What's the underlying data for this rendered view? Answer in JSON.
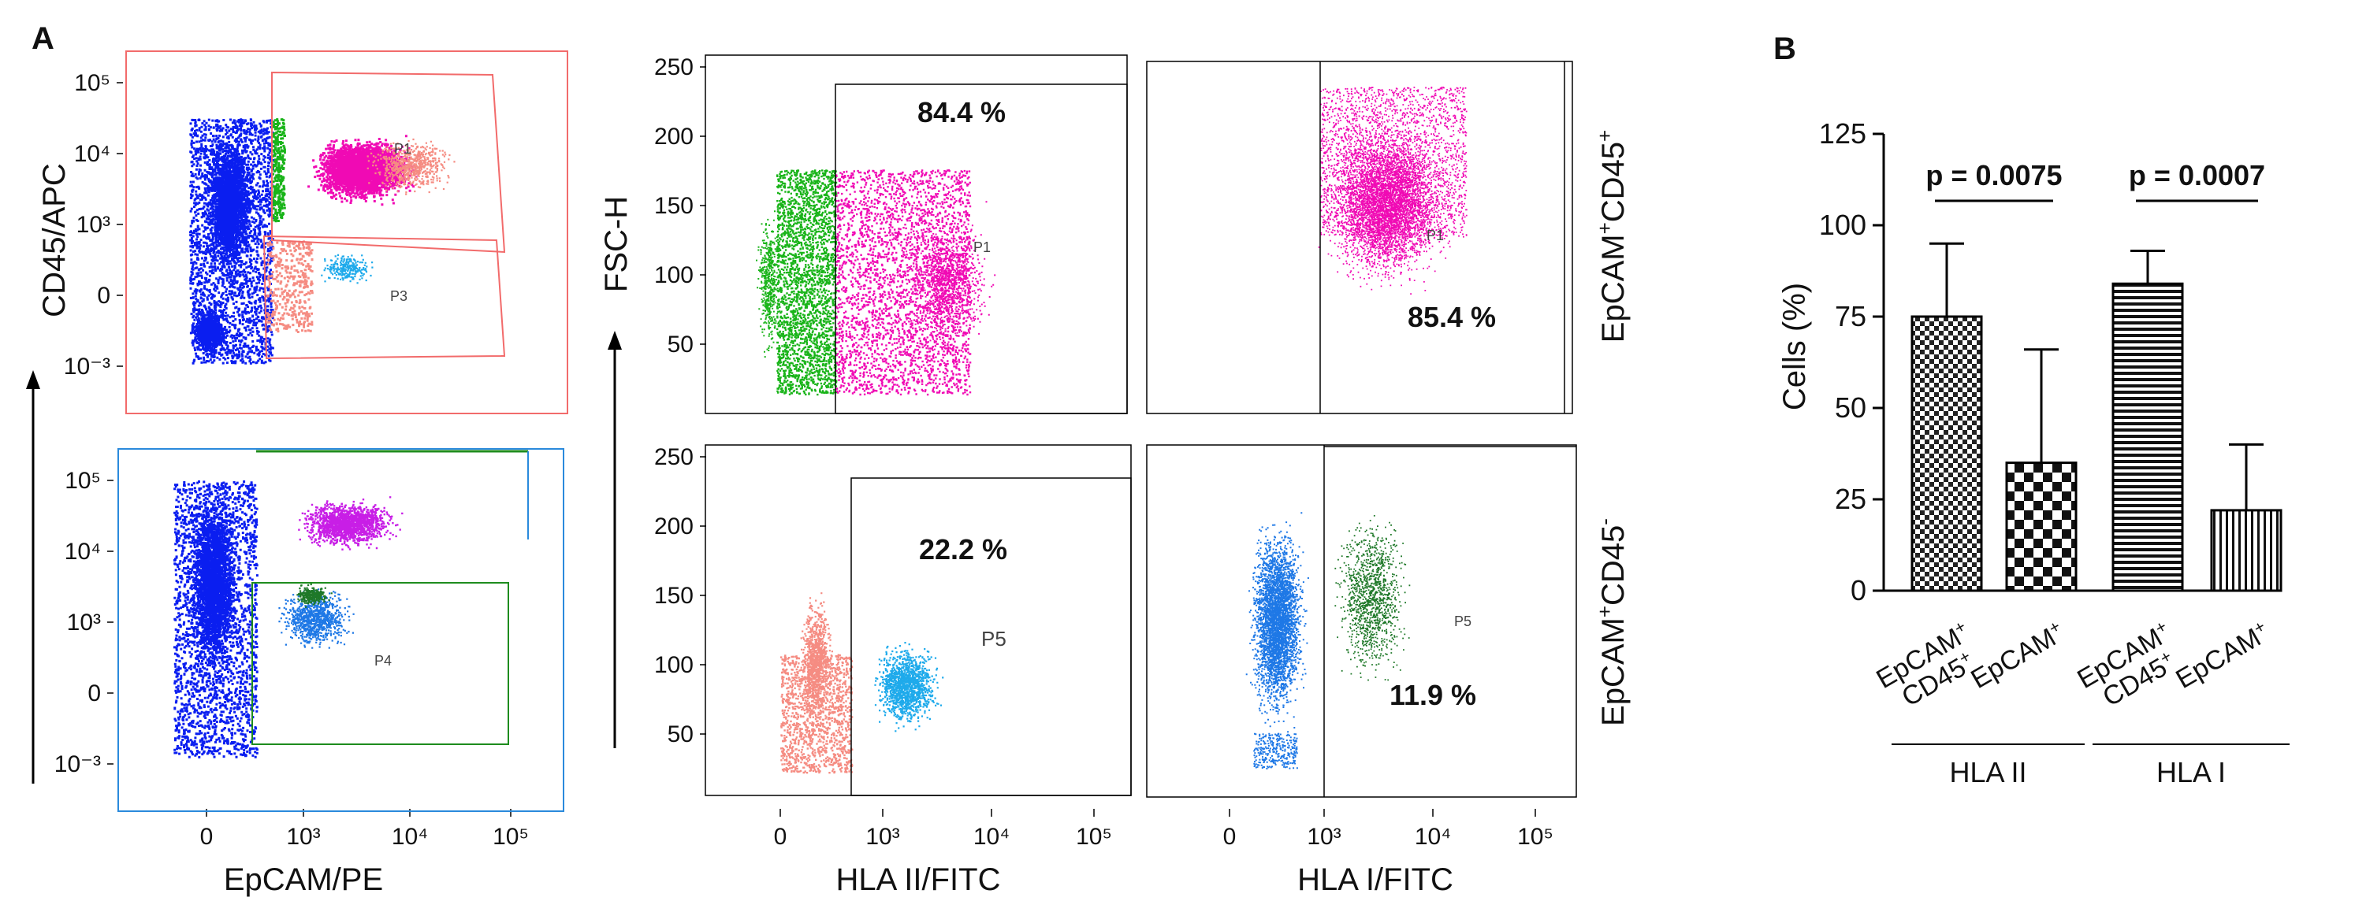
{
  "panel_a": {
    "label": "A",
    "left_ylabel": "CD45/APC",
    "left_xlabel": "EpCAM/PE",
    "left_yticks": [
      "10⁵",
      "10⁴",
      "10³",
      "0",
      "10⁻³"
    ],
    "left_xticks": [
      "0",
      "10³",
      "10⁴",
      "10⁵"
    ],
    "mid_ylabel": "FSC-H",
    "mid_xlabel": "HLA II/FITC",
    "right_xlabel": "HLA I/FITC",
    "fsc_ticks": [
      "250",
      "200",
      "150",
      "100",
      "50"
    ],
    "hla_xticks": [
      "0",
      "10³",
      "10⁴",
      "10⁵"
    ],
    "row_label_top": {
      "base": "EpCAM",
      "sup1": "+",
      "mid": "CD45",
      "sup2": "+"
    },
    "row_label_bottom": {
      "base": "EpCAM",
      "sup1": "+",
      "mid": "CD45",
      "sup2": "-"
    },
    "gates": {
      "g1": "P1",
      "g2": "P2",
      "g3": "P3",
      "g4": "P4",
      "g5": "P5"
    },
    "percentages": {
      "hla2_pos": "84.4 %",
      "hla1_pos": "85.4 %",
      "hla2_neg": "22.2 %",
      "hla1_neg": "11.9 %"
    },
    "colors": {
      "blue": "#0a1ef0",
      "green": "#19b419",
      "magenta": "#f00ab4",
      "salmon": "#f58c82",
      "cyan": "#1eaaeb",
      "violet": "#c81ee6",
      "midblue": "#1e78e6",
      "dkgreen": "#1e7828",
      "gate_red": "#f26b6b",
      "gate_green": "#1e8c1e"
    }
  },
  "chart_data": {
    "type": "bar",
    "panel_label": "B",
    "ylabel": "Cells (%)",
    "ylim": [
      0,
      125
    ],
    "yticks": [
      0,
      25,
      50,
      75,
      100,
      125
    ],
    "categories": [
      {
        "line1": "EpCAM",
        "sup1": "+",
        "line2": "CD45",
        "sup2": "+"
      },
      {
        "line1": "EpCAM",
        "sup1": "+",
        "line2": "",
        "sup2": ""
      },
      {
        "line1": "EpCAM",
        "sup1": "+",
        "line2": "CD45",
        "sup2": "+"
      },
      {
        "line1": "EpCAM",
        "sup1": "+",
        "line2": "",
        "sup2": ""
      }
    ],
    "values": [
      75,
      35,
      84,
      22
    ],
    "errors": [
      95,
      66,
      93,
      40
    ],
    "patterns": [
      "checker-small",
      "checker-large",
      "horizontal-lines",
      "vertical-lines"
    ],
    "groups": [
      "HLA II",
      "HLA I"
    ],
    "pvalues": [
      "p = 0.0075",
      "p = 0.0007"
    ]
  }
}
